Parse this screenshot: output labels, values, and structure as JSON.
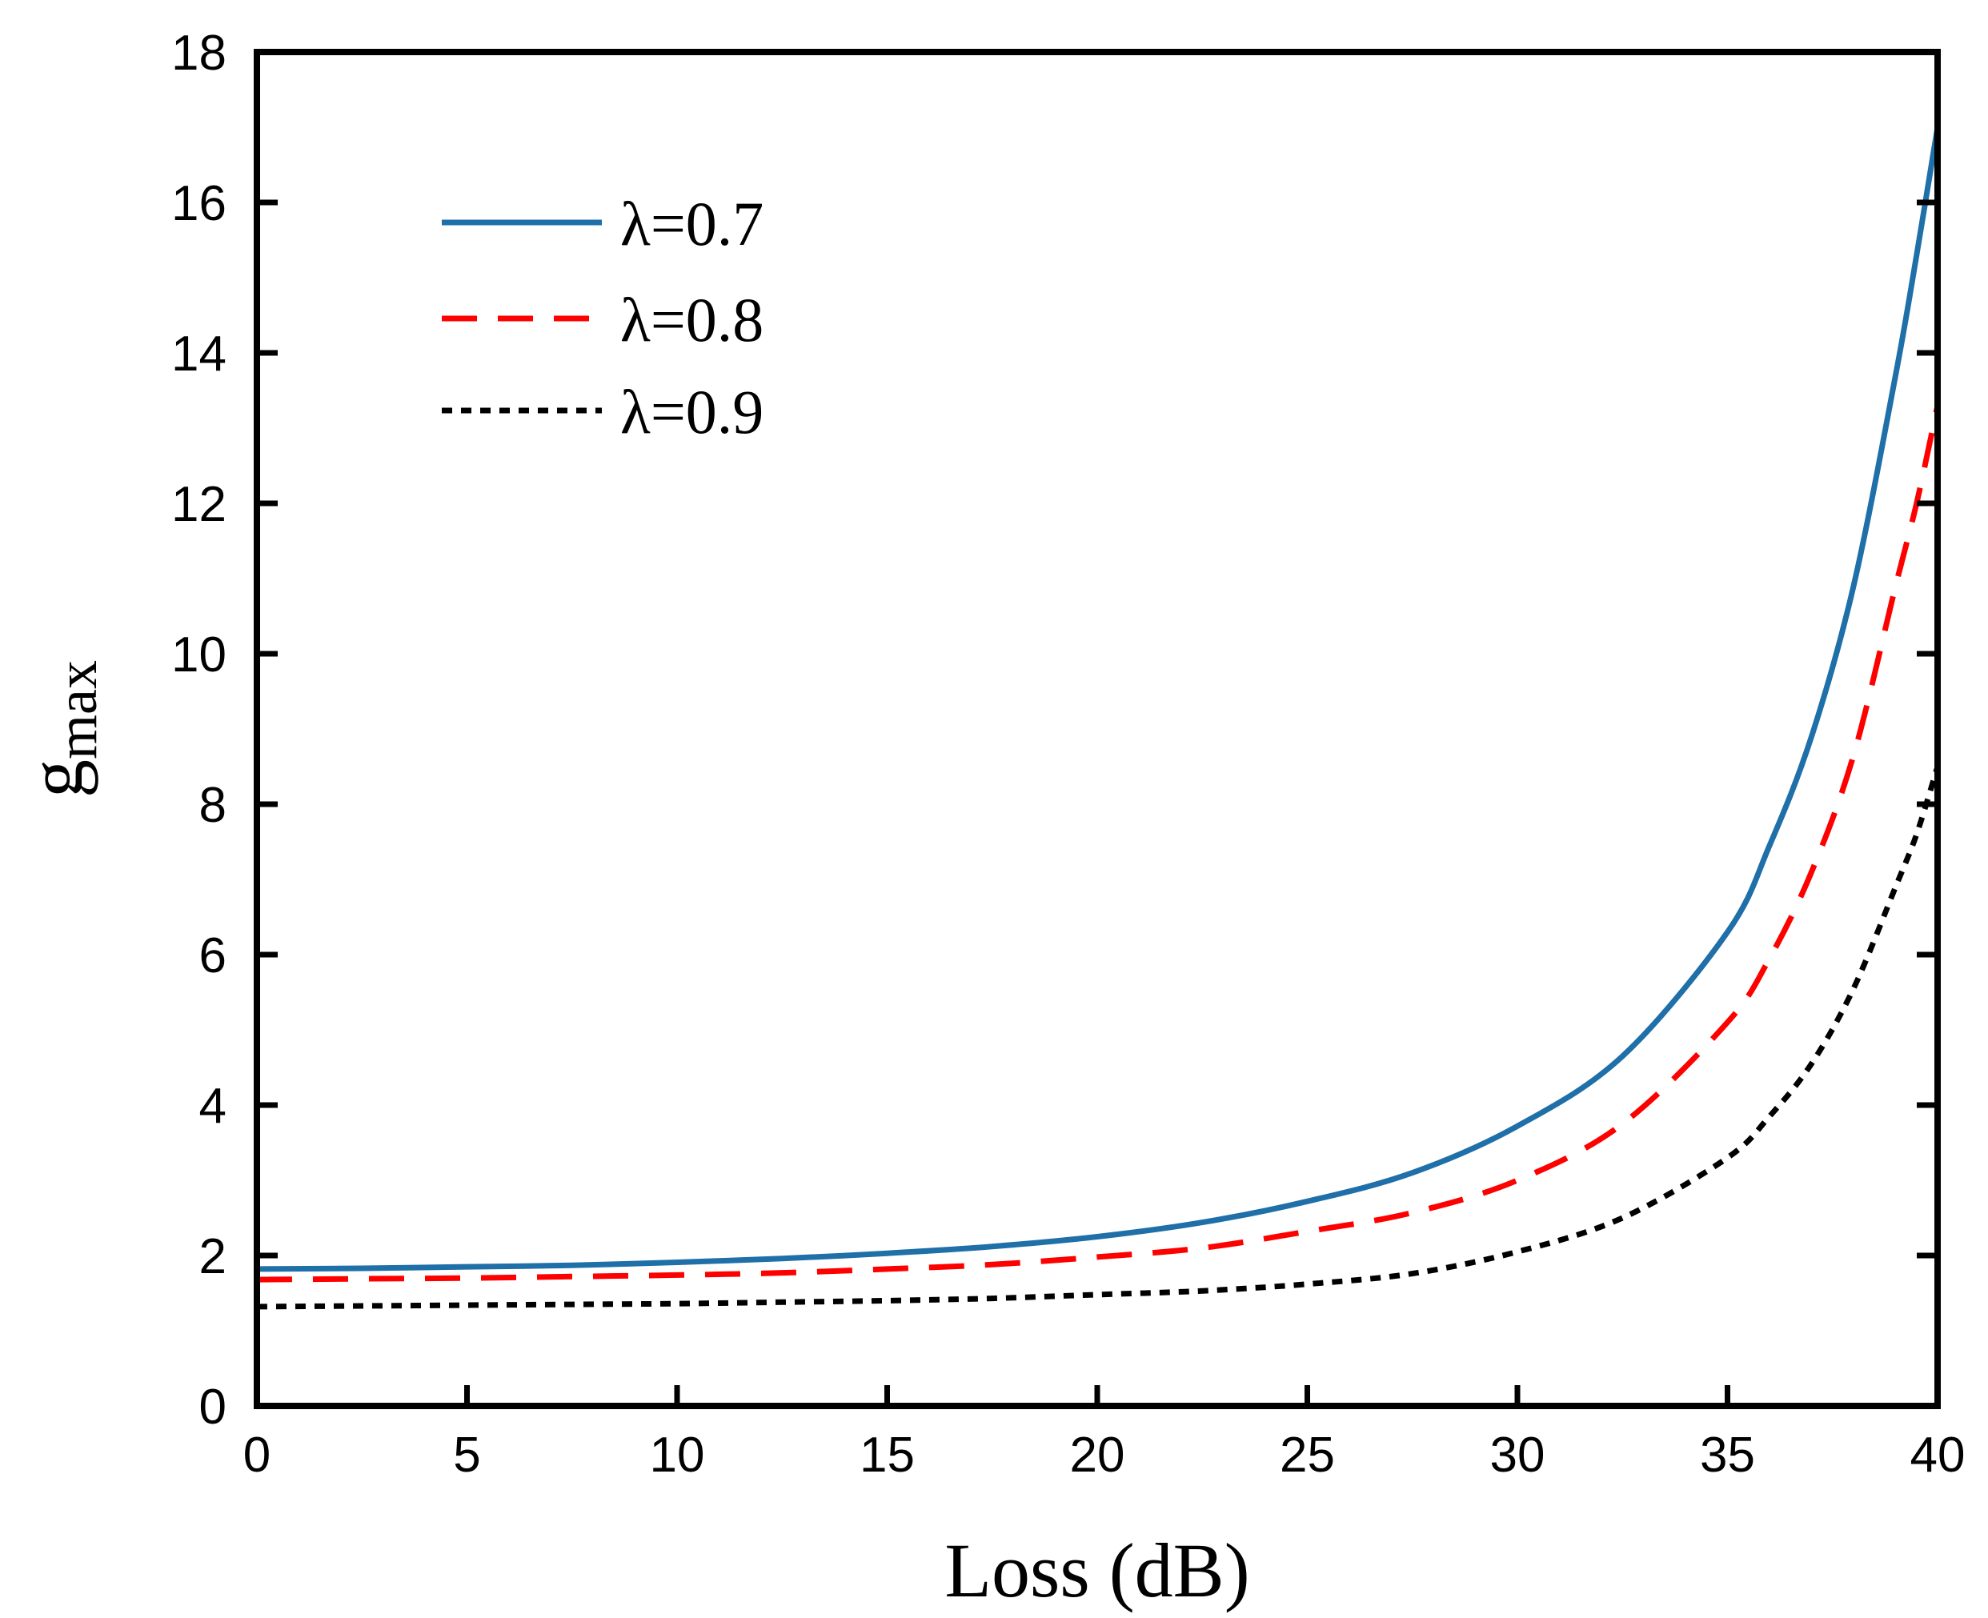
{
  "chart_data": {
    "type": "line",
    "title": "",
    "xlabel": "Loss (dB)",
    "ylabel_base": "g",
    "ylabel_sub": "max",
    "xlim": [
      0,
      40
    ],
    "ylim": [
      0,
      18
    ],
    "xticks": [
      0,
      5,
      10,
      15,
      20,
      25,
      30,
      35,
      40
    ],
    "yticks": [
      0,
      2,
      4,
      6,
      8,
      10,
      12,
      14,
      16,
      18
    ],
    "grid": false,
    "legend_position": "top-left",
    "x": [
      0,
      2.5,
      5,
      7.5,
      10,
      12.5,
      15,
      17.5,
      20,
      22.5,
      25,
      27.5,
      30,
      32.5,
      35,
      36,
      37,
      38,
      39,
      39.5,
      40
    ],
    "series": [
      {
        "name": "λ=0.7",
        "color": "#1f6fa8",
        "style": "solid",
        "values": [
          1.82,
          1.83,
          1.85,
          1.87,
          1.91,
          1.96,
          2.03,
          2.12,
          2.25,
          2.44,
          2.72,
          3.1,
          3.72,
          4.65,
          6.3,
          7.45,
          8.9,
          10.9,
          13.7,
          15.3,
          17.0
        ]
      },
      {
        "name": "λ=0.8",
        "color": "#ff0000",
        "style": "dashed",
        "values": [
          1.68,
          1.69,
          1.7,
          1.72,
          1.74,
          1.77,
          1.82,
          1.88,
          1.98,
          2.1,
          2.32,
          2.57,
          3.0,
          3.75,
          5.1,
          5.95,
          7.1,
          8.65,
          10.9,
          12.0,
          13.3
        ]
      },
      {
        "name": "λ=0.9",
        "color": "#000000",
        "style": "dotted",
        "values": [
          1.32,
          1.33,
          1.34,
          1.35,
          1.36,
          1.38,
          1.4,
          1.43,
          1.48,
          1.53,
          1.62,
          1.76,
          2.05,
          2.5,
          3.3,
          3.85,
          4.55,
          5.55,
          6.9,
          7.6,
          8.5
        ]
      }
    ]
  }
}
